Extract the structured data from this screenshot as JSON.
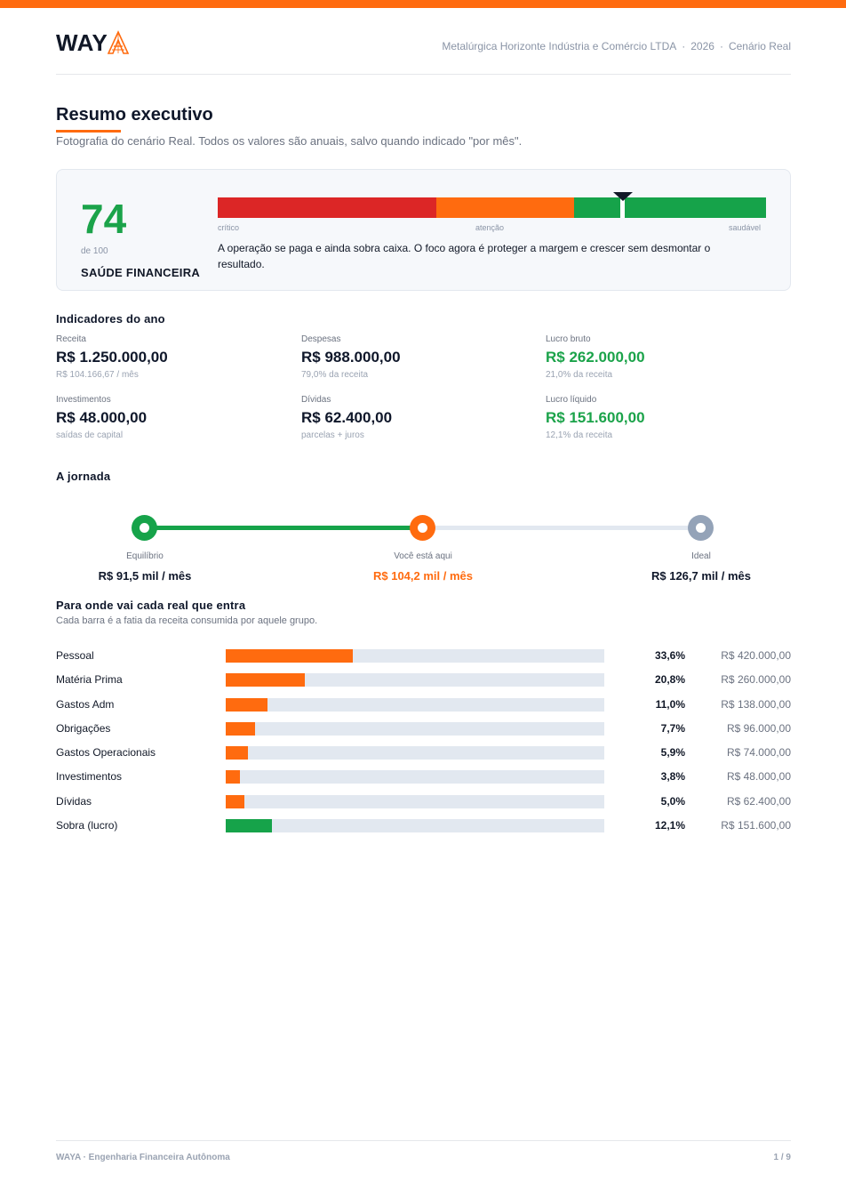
{
  "brand": {
    "logo_text": "WAY",
    "logo_accent": "A",
    "accent_color": "#ff6b0f"
  },
  "header": {
    "company": "Metalúrgica Horizonte Indústria e Comércio LTDA",
    "separator": "·",
    "year": "2026",
    "scenario": "Cenário Real"
  },
  "summary": {
    "title": "Resumo executivo",
    "subtitle": "Fotografia do cenário Real. Todos os valores são anuais, salvo quando indicado \"por mês\"."
  },
  "health": {
    "score": "74",
    "score_max": "de 100",
    "label": "SAÚDE FINANCEIRA",
    "score_value": 74,
    "zones": [
      "crítico",
      "atenção",
      "saudável"
    ],
    "message": "A operação se paga e ainda sobra caixa. O foco agora é proteger a margem e crescer sem desmontar o resultado."
  },
  "indicators": {
    "title": "Indicadores do ano",
    "items": [
      {
        "label": "Receita",
        "value": "R$ 1.250.000,00",
        "sub": "R$ 104.166,67 / mês"
      },
      {
        "label": "Despesas",
        "value": "R$ 988.000,00",
        "sub": "79,0% da receita"
      },
      {
        "label": "Lucro bruto",
        "value": "R$ 262.000,00",
        "sub": "21,0% da receita"
      },
      {
        "label": "Investimentos",
        "value": "R$ 48.000,00",
        "sub": "saídas de capital"
      },
      {
        "label": "Dívidas",
        "value": "R$ 62.400,00",
        "sub": "parcelas + juros"
      },
      {
        "label": "Lucro líquido",
        "value": "R$ 151.600,00",
        "sub": "12,1% da receita"
      }
    ]
  },
  "journey": {
    "title": "A jornada",
    "points": [
      {
        "label": "Equilíbrio",
        "value": "R$ 91,5 mil / mês"
      },
      {
        "label": "Você está aqui",
        "value": "R$ 104,2 mil / mês"
      },
      {
        "label": "Ideal",
        "value": "R$ 126,7 mil / mês"
      }
    ]
  },
  "allocation": {
    "title": "Para onde vai cada real que entra",
    "subtitle": "Cada barra é a fatia da receita consumida por aquele grupo.",
    "rows": [
      {
        "name": "Pessoal",
        "pct": "33,6%",
        "amount": "R$ 420.000,00",
        "share": 0.336
      },
      {
        "name": "Matéria Prima",
        "pct": "20,8%",
        "amount": "R$ 260.000,00",
        "share": 0.208
      },
      {
        "name": "Gastos Adm",
        "pct": "11,0%",
        "amount": "R$ 138.000,00",
        "share": 0.11
      },
      {
        "name": "Obrigações",
        "pct": "7,7%",
        "amount": "R$ 96.000,00",
        "share": 0.077
      },
      {
        "name": "Gastos Operacionais",
        "pct": "5,9%",
        "amount": "R$ 74.000,00",
        "share": 0.059
      },
      {
        "name": "Investimentos",
        "pct": "3,8%",
        "amount": "R$ 48.000,00",
        "share": 0.038
      },
      {
        "name": "Dívidas",
        "pct": "5,0%",
        "amount": "R$ 62.400,00",
        "share": 0.05
      },
      {
        "name": "Sobra (lucro)",
        "pct": "12,1%",
        "amount": "R$ 151.600,00",
        "share": 0.121
      }
    ]
  },
  "footer": {
    "left": "WAYA · Engenharia Financeira Autônoma",
    "right": "1 / 9"
  }
}
